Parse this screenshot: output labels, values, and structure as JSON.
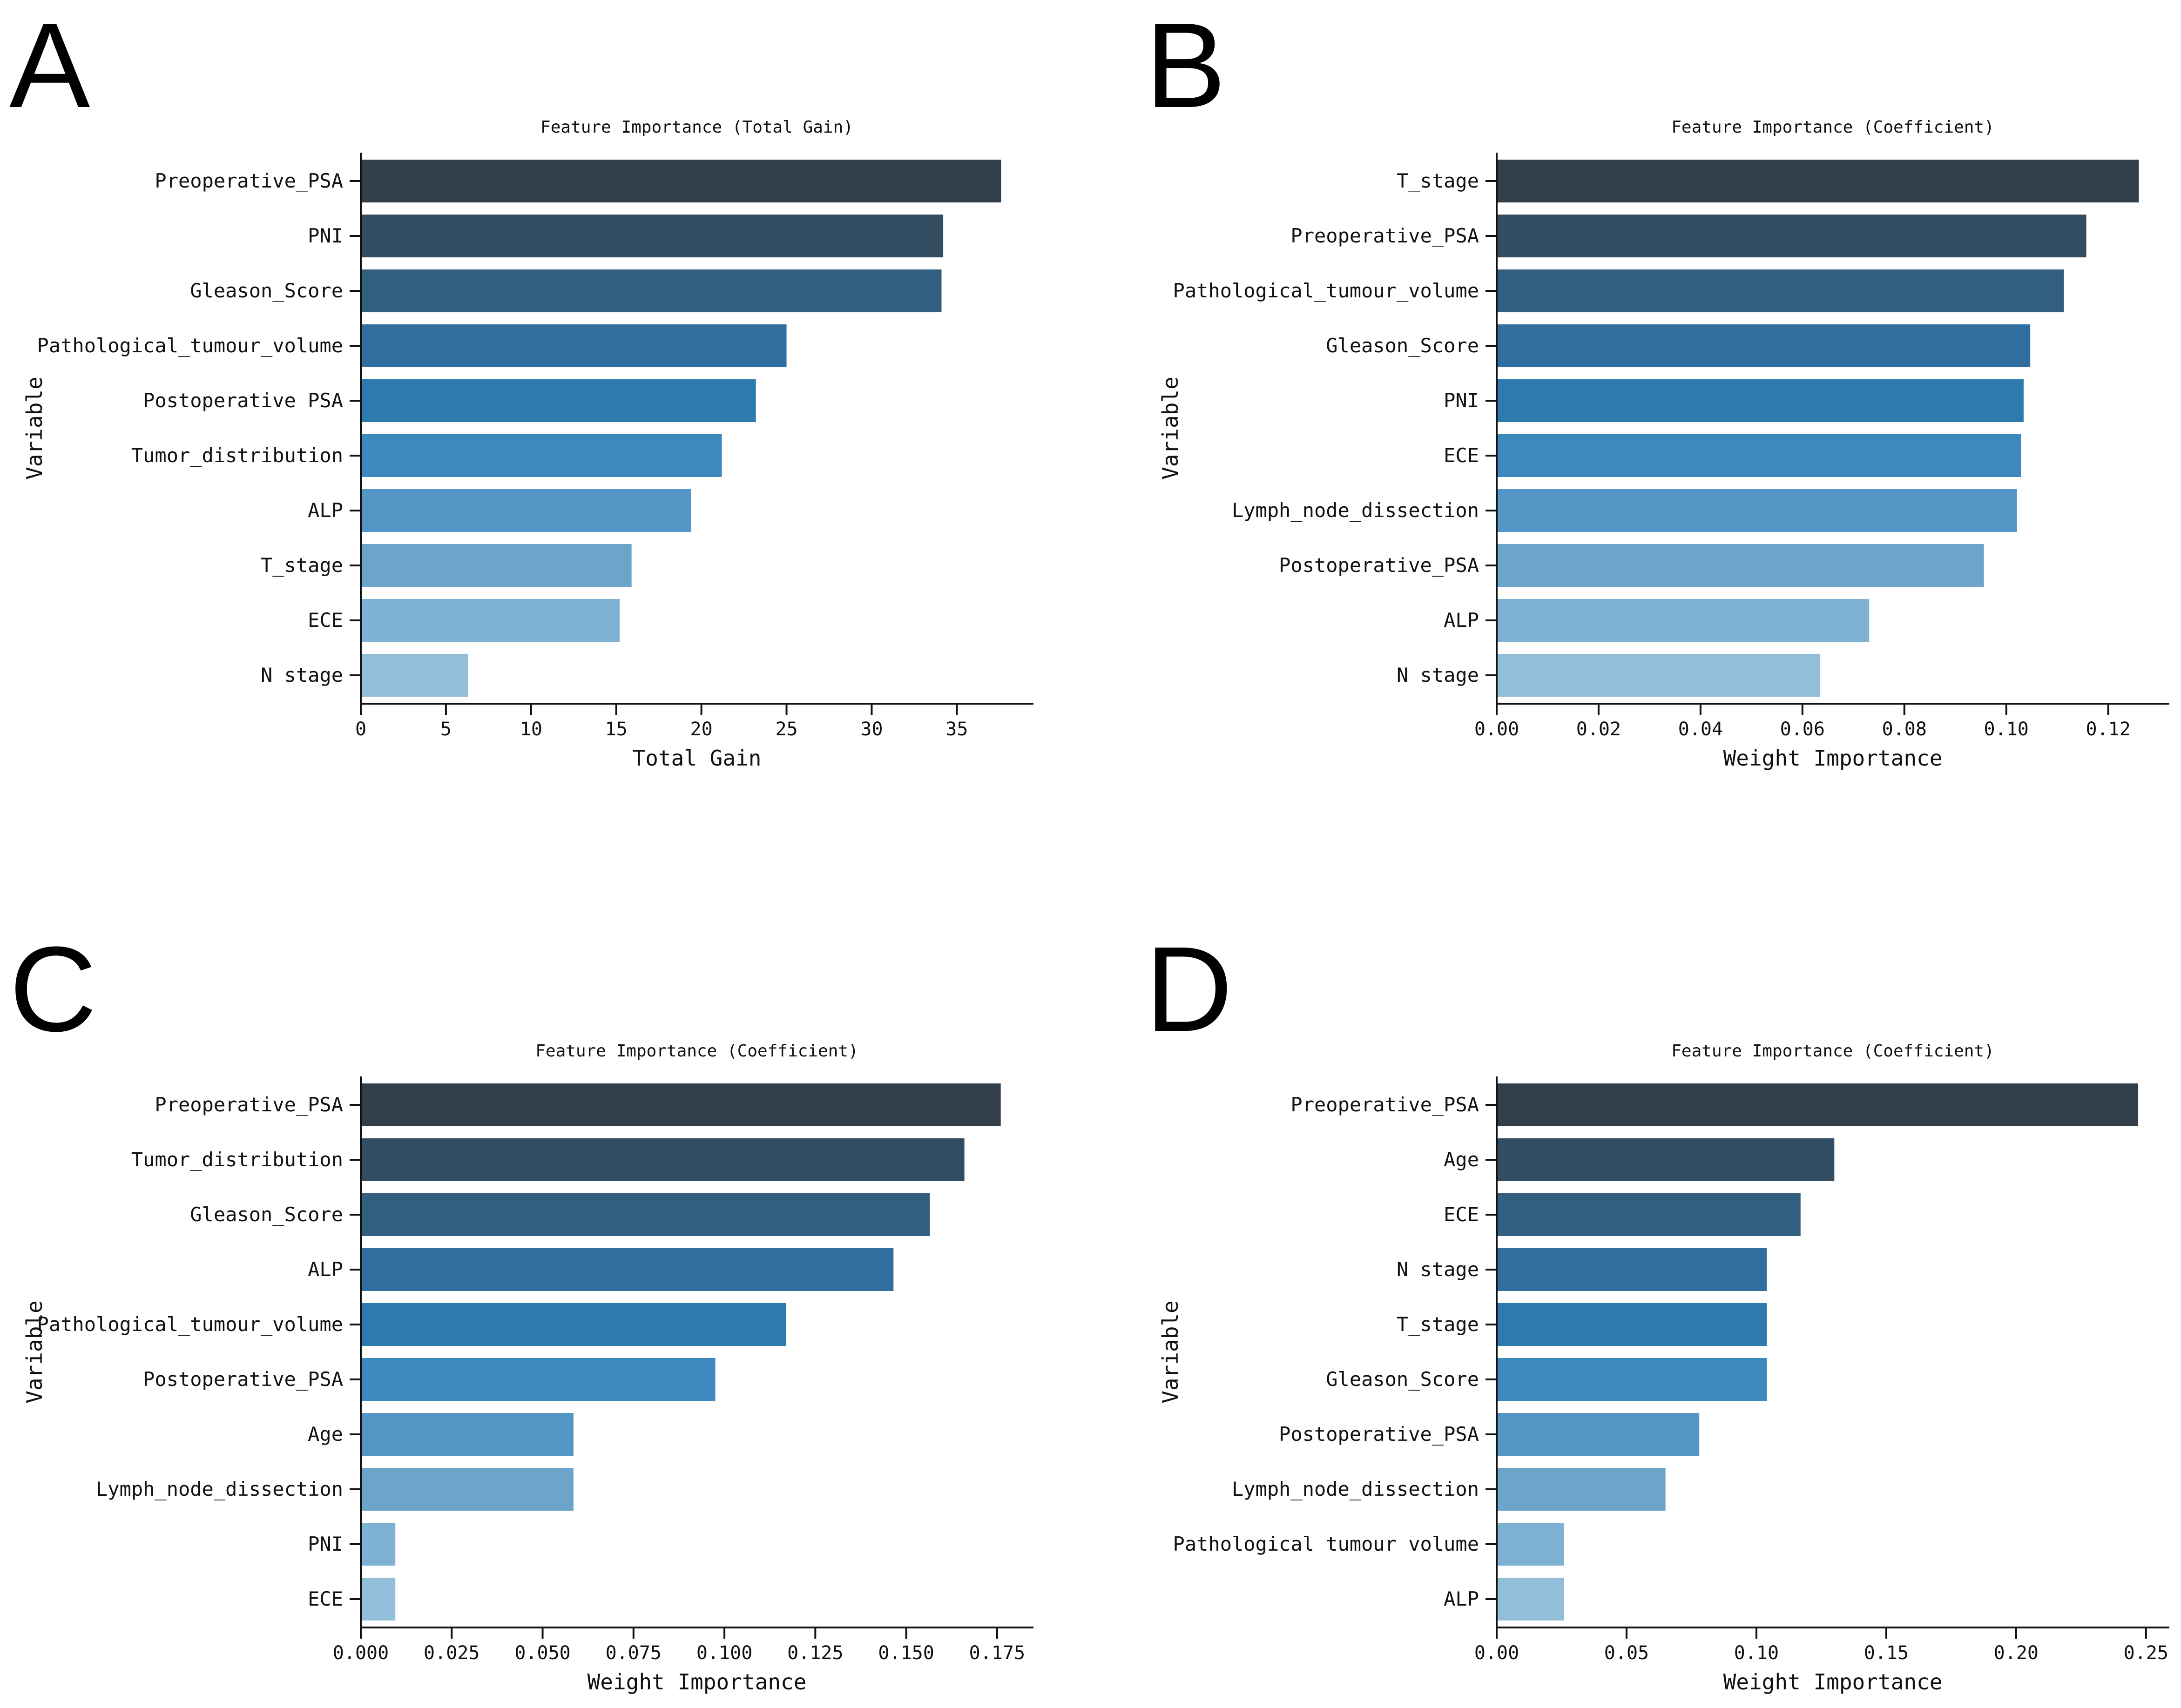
{
  "chart_data": [
    {
      "panel": "A",
      "type": "bar",
      "orientation": "horizontal",
      "title": "Feature Importance (Total Gain)",
      "xlabel": "Total Gain",
      "ylabel": "Variable",
      "xlim": [
        0,
        39.5
      ],
      "xticks": [
        0,
        5,
        10,
        15,
        20,
        25,
        30,
        35
      ],
      "xtick_labels": [
        "0",
        "5",
        "10",
        "15",
        "20",
        "25",
        "30",
        "35"
      ],
      "categories": [
        "Preoperative_PSA",
        "PNI",
        "Gleason_Score",
        "Pathological_tumour_volume",
        "Postoperative PSA",
        "Tumor_distribution",
        "ALP",
        "T_stage",
        "ECE",
        "N stage"
      ],
      "values": [
        37.6,
        34.2,
        34.1,
        25.0,
        23.2,
        21.2,
        19.4,
        15.9,
        15.2,
        6.3
      ]
    },
    {
      "panel": "B",
      "type": "bar",
      "orientation": "horizontal",
      "title": "Feature Importance (Coefficient)",
      "xlabel": "Weight Importance",
      "ylabel": "Variable",
      "xlim": [
        0,
        0.132
      ],
      "xticks": [
        0,
        0.02,
        0.04,
        0.06,
        0.08,
        0.1,
        0.12
      ],
      "xtick_labels": [
        "0.00",
        "0.02",
        "0.04",
        "0.06",
        "0.08",
        "0.10",
        "0.12"
      ],
      "categories": [
        "T_stage",
        "Preoperative_PSA",
        "Pathological_tumour_volume",
        "Gleason_Score",
        "PNI",
        "ECE",
        "Lymph_node_dissection",
        "Postoperative_PSA",
        "ALP",
        "N stage"
      ],
      "values": [
        0.126,
        0.1157,
        0.1113,
        0.1047,
        0.1034,
        0.1029,
        0.1021,
        0.0956,
        0.0731,
        0.0635
      ]
    },
    {
      "panel": "C",
      "type": "bar",
      "orientation": "horizontal",
      "title": "Feature Importance (Coefficient)",
      "xlabel": "Weight Importance",
      "ylabel": "Variable",
      "xlim": [
        0,
        0.185
      ],
      "xticks": [
        0,
        0.025,
        0.05,
        0.075,
        0.1,
        0.125,
        0.15,
        0.175
      ],
      "xtick_labels": [
        "0.000",
        "0.025",
        "0.050",
        "0.075",
        "0.100",
        "0.125",
        "0.150",
        "0.175"
      ],
      "categories": [
        "Preoperative_PSA",
        "Tumor_distribution",
        "Gleason_Score",
        "ALP",
        "Pathological_tumour_volume",
        "Postoperative_PSA",
        "Age",
        "Lymph_node_dissection",
        "PNI",
        "ECE"
      ],
      "values": [
        0.176,
        0.166,
        0.1565,
        0.1465,
        0.117,
        0.0975,
        0.0585,
        0.0585,
        0.0095,
        0.0095
      ]
    },
    {
      "panel": "D",
      "type": "bar",
      "orientation": "horizontal",
      "title": "Feature Importance (Coefficient)",
      "xlabel": "Weight Importance",
      "ylabel": "Variable",
      "xlim": [
        0,
        0.259
      ],
      "xticks": [
        0,
        0.05,
        0.1,
        0.15,
        0.2,
        0.25
      ],
      "xtick_labels": [
        "0.00",
        "0.05",
        "0.10",
        "0.15",
        "0.20",
        "0.25"
      ],
      "categories": [
        "Preoperative_PSA",
        "Age",
        "ECE",
        "N stage",
        "T_stage",
        "Gleason_Score",
        "Postoperative_PSA",
        "Lymph_node_dissection",
        "Pathological tumour volume",
        "ALP"
      ],
      "values": [
        0.247,
        0.13,
        0.117,
        0.104,
        0.104,
        0.104,
        0.078,
        0.065,
        0.026,
        0.026
      ]
    }
  ],
  "bar_colors": [
    "#323f4a",
    "#324c62",
    "#325f80",
    "#2f6e9e",
    "#2e7aae",
    "#3d89be",
    "#5497c6",
    "#6ca4ca",
    "#7fb1d4",
    "#93bed9"
  ]
}
